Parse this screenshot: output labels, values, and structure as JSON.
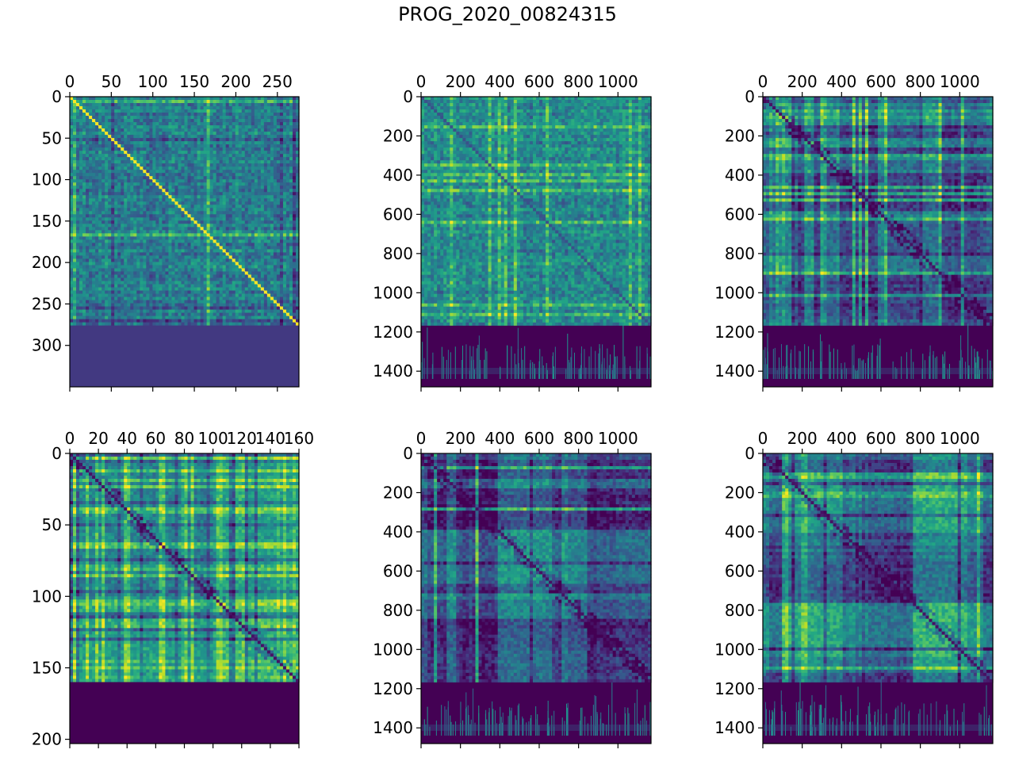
{
  "suptitle": "PROG_2020_00824315",
  "chart_data": [
    {
      "type": "heatmap",
      "colormap": "viridis",
      "matrix_size": 276,
      "ylim": [
        350,
        0
      ],
      "x_ticks": [
        0,
        50,
        100,
        150,
        200,
        250
      ],
      "x_tick_labels": [
        "0",
        "50",
        "100",
        "150",
        "200",
        "250"
      ],
      "y_ticks": [
        0,
        50,
        100,
        150,
        200,
        250,
        300
      ],
      "y_tick_labels": [
        "0",
        "50",
        "100",
        "150",
        "200",
        "250",
        "300"
      ],
      "x_axis_position": "top",
      "fill_value_region": "rows 276-350",
      "style": "fine_noise"
    },
    {
      "type": "heatmap",
      "colormap": "viridis",
      "matrix_size": 1168,
      "ylim": [
        1480,
        0
      ],
      "x_ticks": [
        0,
        200,
        400,
        600,
        800,
        1000
      ],
      "x_tick_labels": [
        "0",
        "200",
        "400",
        "600",
        "800",
        "1000"
      ],
      "y_ticks": [
        0,
        200,
        400,
        600,
        800,
        1000,
        1200,
        1400
      ],
      "y_tick_labels": [
        "0",
        "200",
        "400",
        "600",
        "800",
        "1000",
        "1200",
        "1400"
      ],
      "x_axis_position": "top",
      "fill_value_region": "rows 1168-1480",
      "style": "bright_grid"
    },
    {
      "type": "heatmap",
      "colormap": "viridis",
      "matrix_size": 1168,
      "ylim": [
        1480,
        0
      ],
      "x_ticks": [
        0,
        200,
        400,
        600,
        800,
        1000
      ],
      "x_tick_labels": [
        "0",
        "200",
        "400",
        "600",
        "800",
        "1000"
      ],
      "y_ticks": [
        0,
        200,
        400,
        600,
        800,
        1000,
        1200,
        1400
      ],
      "y_tick_labels": [
        "0",
        "200",
        "400",
        "600",
        "800",
        "1000",
        "1200",
        "1400"
      ],
      "x_axis_position": "top",
      "fill_value_region": "rows 1168-1480",
      "style": "blocky"
    },
    {
      "type": "heatmap",
      "colormap": "viridis",
      "matrix_size": 160,
      "ylim": [
        203,
        0
      ],
      "x_ticks": [
        0,
        20,
        40,
        60,
        80,
        100,
        120,
        140,
        160
      ],
      "x_tick_labels": [
        "0",
        "20",
        "40",
        "60",
        "80",
        "100",
        "120",
        "140",
        "160"
      ],
      "y_ticks": [
        0,
        50,
        100,
        150,
        200
      ],
      "y_tick_labels": [
        "0",
        "50",
        "100",
        "150",
        "200"
      ],
      "x_axis_position": "top",
      "fill_value_region": "rows 160-203",
      "style": "blocky_bright"
    },
    {
      "type": "heatmap",
      "colormap": "viridis",
      "matrix_size": 1168,
      "ylim": [
        1480,
        0
      ],
      "x_ticks": [
        0,
        200,
        400,
        600,
        800,
        1000
      ],
      "x_tick_labels": [
        "0",
        "200",
        "400",
        "600",
        "800",
        "1000"
      ],
      "y_ticks": [
        0,
        200,
        400,
        600,
        800,
        1000,
        1200,
        1400
      ],
      "y_tick_labels": [
        "0",
        "200",
        "400",
        "600",
        "800",
        "1000",
        "1200",
        "1400"
      ],
      "x_axis_position": "top",
      "fill_value_region": "rows 1168-1480",
      "style": "blocky_dark"
    },
    {
      "type": "heatmap",
      "colormap": "viridis",
      "matrix_size": 1168,
      "ylim": [
        1480,
        0
      ],
      "x_ticks": [
        0,
        200,
        400,
        600,
        800,
        1000
      ],
      "x_tick_labels": [
        "0",
        "200",
        "400",
        "600",
        "800",
        "1000"
      ],
      "y_ticks": [
        0,
        200,
        400,
        600,
        800,
        1000,
        1200,
        1400
      ],
      "y_tick_labels": [
        "0",
        "200",
        "400",
        "600",
        "800",
        "1000",
        "1200",
        "1400"
      ],
      "x_axis_position": "top",
      "fill_value_region": "rows 1168-1480",
      "style": "blocky_mid"
    }
  ]
}
